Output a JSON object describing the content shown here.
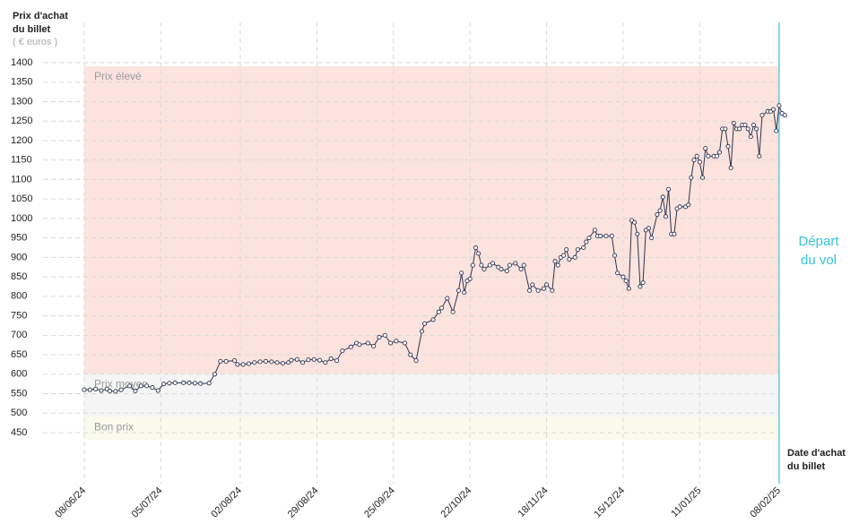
{
  "chart_data": {
    "type": "line",
    "y_label": [
      "Prix d'achat",
      "du billet"
    ],
    "y_unit": "( € euros )",
    "x_label": [
      "Date d'achat",
      "du billet"
    ],
    "xlim": [
      0,
      248
    ],
    "ylim": [
      450,
      1400
    ],
    "xticks": [
      {
        "value": 0,
        "label": "08/06/24"
      },
      {
        "value": 27,
        "label": "05/07/24"
      },
      {
        "value": 55,
        "label": "02/08/24"
      },
      {
        "value": 82,
        "label": "29/08/24"
      },
      {
        "value": 109,
        "label": "25/09/24"
      },
      {
        "value": 136,
        "label": "22/10/24"
      },
      {
        "value": 163,
        "label": "18/11/24"
      },
      {
        "value": 190,
        "label": "15/12/24"
      },
      {
        "value": 217,
        "label": "11/01/25"
      },
      {
        "value": 245,
        "label": "08/02/25"
      }
    ],
    "yticks": [
      450,
      500,
      550,
      600,
      650,
      700,
      750,
      800,
      850,
      900,
      950,
      1000,
      1050,
      1100,
      1150,
      1200,
      1250,
      1300,
      1350,
      1400
    ],
    "grid": true,
    "bands": [
      {
        "label": "Prix élevé",
        "from": 610,
        "to": 1400,
        "color": "#fde3de"
      },
      {
        "label": "Prix moyen",
        "from": 500,
        "to": 610,
        "color": "#f5f5f5"
      },
      {
        "label": "Bon prix",
        "from": 450,
        "to": 500,
        "color": "#fafaed"
      }
    ],
    "departure": {
      "x": 245,
      "label": [
        "Départ",
        "du vol"
      ],
      "color": "#36c3dc"
    },
    "series": [
      {
        "color": "#2d3450",
        "x": [
          0,
          2,
          4,
          6,
          8,
          9,
          11,
          13,
          16,
          18,
          20,
          22,
          24,
          26,
          28,
          30,
          32,
          35,
          37,
          39,
          41,
          44,
          46,
          48,
          50,
          53,
          54,
          56,
          58,
          60,
          62,
          64,
          66,
          68,
          70,
          72,
          73,
          75,
          77,
          79,
          81,
          83,
          85,
          87,
          89,
          91,
          94,
          96,
          97,
          100,
          102,
          104,
          106,
          108,
          110,
          113,
          115,
          117,
          119,
          120,
          123,
          125,
          126,
          128,
          130,
          132,
          133,
          134,
          135,
          136,
          137,
          138,
          139,
          140,
          141,
          143,
          144,
          146,
          147,
          149,
          150,
          152,
          154,
          155,
          157,
          158,
          160,
          162,
          163,
          165,
          166,
          167,
          168,
          169,
          170,
          171,
          173,
          174,
          176,
          177,
          178,
          180,
          181,
          182,
          184,
          186,
          187,
          188,
          190,
          191,
          192,
          193,
          194,
          195,
          196,
          197,
          198,
          199,
          200,
          202,
          203,
          204,
          205,
          206,
          207,
          208,
          209,
          210,
          212,
          213,
          214,
          215,
          216,
          217,
          218,
          219,
          220,
          222,
          223,
          224,
          225,
          226,
          227,
          228,
          229,
          230,
          231,
          232,
          233,
          234,
          235,
          236,
          237,
          238,
          239,
          241,
          242,
          243,
          244,
          245,
          246,
          247
        ],
        "values": [
          560,
          560,
          562,
          558,
          562,
          557,
          556,
          560,
          570,
          557,
          570,
          570,
          566,
          558,
          575,
          577,
          578,
          578,
          578,
          577,
          576,
          577,
          600,
          633,
          633,
          635,
          625,
          625,
          627,
          630,
          632,
          633,
          632,
          630,
          628,
          630,
          636,
          638,
          630,
          637,
          638,
          636,
          630,
          640,
          635,
          660,
          670,
          680,
          676,
          680,
          672,
          695,
          700,
          680,
          685,
          680,
          650,
          635,
          710,
          730,
          740,
          760,
          770,
          795,
          760,
          815,
          860,
          810,
          840,
          845,
          880,
          925,
          910,
          880,
          870,
          880,
          885,
          875,
          870,
          865,
          880,
          885,
          870,
          880,
          815,
          830,
          815,
          820,
          830,
          815,
          890,
          880,
          900,
          905,
          920,
          895,
          900,
          920,
          925,
          940,
          950,
          970,
          955,
          955,
          955,
          955,
          905,
          860,
          850,
          840,
          820,
          995,
          990,
          960,
          825,
          835,
          970,
          975,
          950,
          1010,
          1020,
          1055,
          1005,
          1075,
          960,
          960,
          1025,
          1030,
          1030,
          1035,
          1105,
          1150,
          1160,
          1145,
          1105,
          1180,
          1160,
          1160,
          1160,
          1170,
          1230,
          1230,
          1185,
          1130,
          1245,
          1230,
          1230,
          1240,
          1240,
          1230,
          1210,
          1240,
          1230,
          1160,
          1265,
          1275,
          1275,
          1280,
          1225,
          1290,
          1270,
          1265
        ]
      }
    ]
  }
}
